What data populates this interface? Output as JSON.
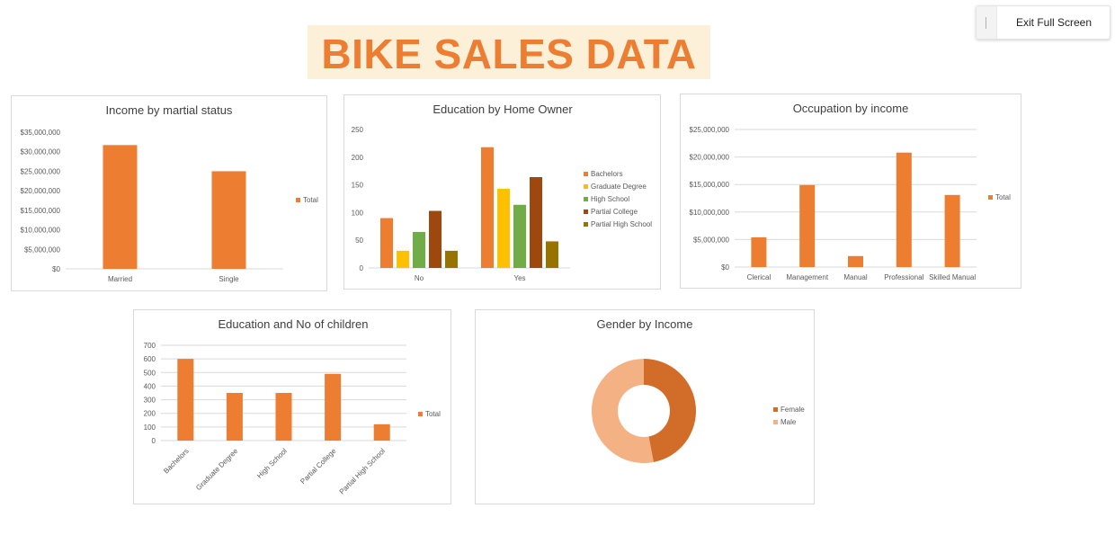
{
  "banner": {
    "title": "BIKE SALES DATA"
  },
  "toolbar": {
    "exit_label": "Exit Full Screen"
  },
  "colors": {
    "accent": "#ed7d31",
    "banner_bg": "#fdf0d8",
    "grid": "#d9d9d9"
  },
  "chart_data": [
    {
      "type": "bar",
      "title": "Income by martial status",
      "categories": [
        "Married",
        "Single"
      ],
      "series": [
        {
          "name": "Total",
          "color": "#ed7d31",
          "values": [
            31700000,
            25000000
          ]
        }
      ],
      "yticks": [
        "$0",
        "$5,000,000",
        "$10,000,000",
        "$15,000,000",
        "$20,000,000",
        "$25,000,000",
        "$30,000,000",
        "$35,000,000"
      ],
      "ylim": [
        0,
        35000000
      ],
      "grid": false,
      "legend": "right"
    },
    {
      "type": "bar",
      "title": "Education by Home Owner",
      "categories": [
        "No",
        "Yes"
      ],
      "series": [
        {
          "name": "Bachelors",
          "color": "#ed7d31",
          "values": [
            90,
            218
          ]
        },
        {
          "name": "Graduate Degree",
          "color": "#ffc000",
          "values": [
            31,
            143
          ]
        },
        {
          "name": "High School",
          "color": "#70ad47",
          "values": [
            65,
            114
          ]
        },
        {
          "name": "Partial College",
          "color": "#9e480e",
          "values": [
            103,
            164
          ]
        },
        {
          "name": "Partial High School",
          "color": "#997300",
          "values": [
            31,
            48
          ]
        }
      ],
      "yticks": [
        "0",
        "50",
        "100",
        "150",
        "200",
        "250"
      ],
      "ylim": [
        0,
        250
      ],
      "grid": false,
      "legend": "right"
    },
    {
      "type": "bar",
      "title": "Occupation by income",
      "categories": [
        "Clerical",
        "Management",
        "Manual",
        "Professional",
        "Skilled Manual"
      ],
      "series": [
        {
          "name": "Total",
          "color": "#ed7d31",
          "values": [
            5400000,
            14900000,
            2000000,
            20800000,
            13100000
          ]
        }
      ],
      "yticks": [
        "$0",
        "$5,000,000",
        "$10,000,000",
        "$15,000,000",
        "$20,000,000",
        "$25,000,000"
      ],
      "ylim": [
        0,
        25000000
      ],
      "grid": true,
      "legend": "right"
    },
    {
      "type": "bar",
      "title": "Education and No of children",
      "categories": [
        "Bachelors",
        "Graduate Degree",
        "High School",
        "Partial College",
        "Partial High School"
      ],
      "series": [
        {
          "name": "Total",
          "color": "#ed7d31",
          "values": [
            600,
            350,
            350,
            490,
            120
          ]
        }
      ],
      "yticks": [
        "0",
        "100",
        "200",
        "300",
        "400",
        "500",
        "600",
        "700"
      ],
      "ylim": [
        0,
        700
      ],
      "grid": true,
      "legend": "right"
    },
    {
      "type": "pie",
      "title": "Gender by Income",
      "categories": [
        "Female",
        "Male"
      ],
      "values": [
        47,
        53
      ],
      "colors": [
        "#d26d29",
        "#f4b183"
      ],
      "legend": "right"
    }
  ]
}
